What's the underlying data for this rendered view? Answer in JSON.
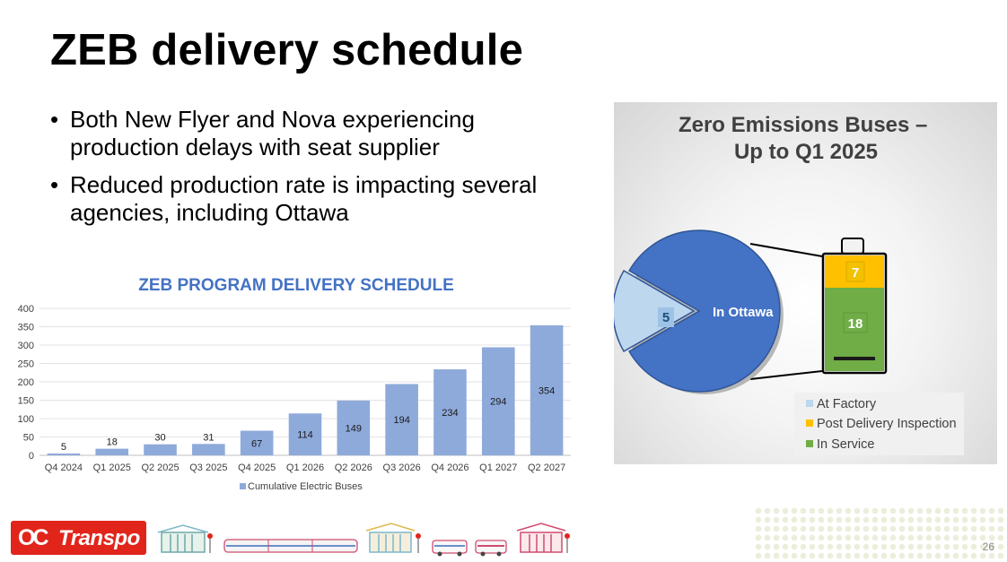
{
  "slide": {
    "title": "ZEB delivery schedule",
    "page_number": "26"
  },
  "bullets": [
    "Both New Flyer and Nova experiencing production delays with seat supplier",
    "Reduced production rate is impacting several agencies, including Ottawa"
  ],
  "chart_data": [
    {
      "type": "bar",
      "title": "ZEB PROGRAM DELIVERY SCHEDULE",
      "categories": [
        "Q4 2024",
        "Q1 2025",
        "Q2 2025",
        "Q3 2025",
        "Q4 2025",
        "Q1 2026",
        "Q2 2026",
        "Q3 2026",
        "Q4 2026",
        "Q1 2027",
        "Q2 2027"
      ],
      "series": [
        {
          "name": "Cumulative Electric Buses",
          "values": [
            5,
            18,
            30,
            31,
            67,
            114,
            149,
            194,
            234,
            294,
            354
          ],
          "color": "#8eaadb"
        }
      ],
      "ylim": [
        0,
        400
      ],
      "yticks": [
        0,
        50,
        100,
        150,
        200,
        250,
        300,
        350,
        400
      ],
      "grid": true,
      "legend": "bottom"
    },
    {
      "type": "pie",
      "title": "Zero Emissions Buses – Up to Q1 2025",
      "slices": [
        {
          "label": "At Factory",
          "value": 5,
          "color": "#bdd7ee"
        },
        {
          "label": "In Ottawa",
          "value": 25,
          "color": "#4472c4"
        }
      ],
      "breakdown": {
        "of": "In Ottawa",
        "segments": [
          {
            "label": "Post Delivery Inspection",
            "value": 7,
            "color": "#ffc000"
          },
          {
            "label": "In Service",
            "value": 18,
            "color": "#70ad47"
          }
        ]
      },
      "legend": [
        {
          "label": "At Factory",
          "color": "#bdd7ee"
        },
        {
          "label": "Post Delivery Inspection",
          "color": "#ffc000"
        },
        {
          "label": "In Service",
          "color": "#70ad47"
        }
      ],
      "legend_position": "bottom-right"
    }
  ],
  "footer": {
    "logo_oc": "OC",
    "logo_name": "Transpo",
    "illustrations": [
      "station-icon",
      "train-icon",
      "station-icon",
      "bus-icon",
      "bus-icon",
      "station-icon"
    ]
  }
}
